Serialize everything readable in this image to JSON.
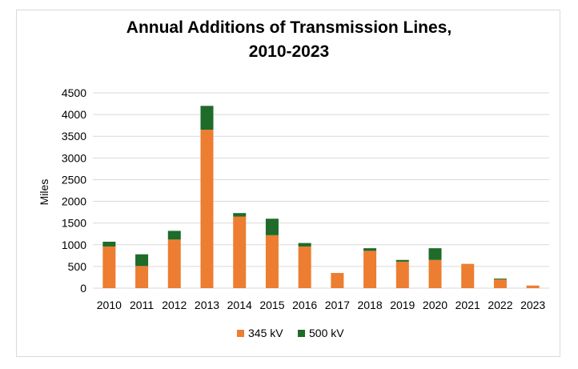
{
  "chart_data": {
    "type": "bar",
    "stacked": true,
    "title_line1": "Annual Additions of Transmission Lines,",
    "title_line2": "2010-2023",
    "xlabel": "",
    "ylabel": "Miles",
    "ylim": [
      0,
      4500
    ],
    "yticks": [
      0,
      500,
      1000,
      1500,
      2000,
      2500,
      3000,
      3500,
      4000,
      4500
    ],
    "grid": true,
    "legend_position": "bottom",
    "categories": [
      "2010",
      "2011",
      "2012",
      "2013",
      "2014",
      "2015",
      "2016",
      "2017",
      "2018",
      "2019",
      "2020",
      "2021",
      "2022",
      "2023"
    ],
    "series": [
      {
        "name": "345 kV",
        "color": "#ed7d31",
        "values": [
          960,
          510,
          1120,
          3650,
          1650,
          1220,
          960,
          350,
          860,
          610,
          650,
          560,
          200,
          60
        ]
      },
      {
        "name": "500 kV",
        "color": "#1e6b2a",
        "values": [
          110,
          270,
          200,
          550,
          80,
          380,
          80,
          0,
          60,
          40,
          270,
          0,
          20,
          0
        ]
      }
    ]
  }
}
